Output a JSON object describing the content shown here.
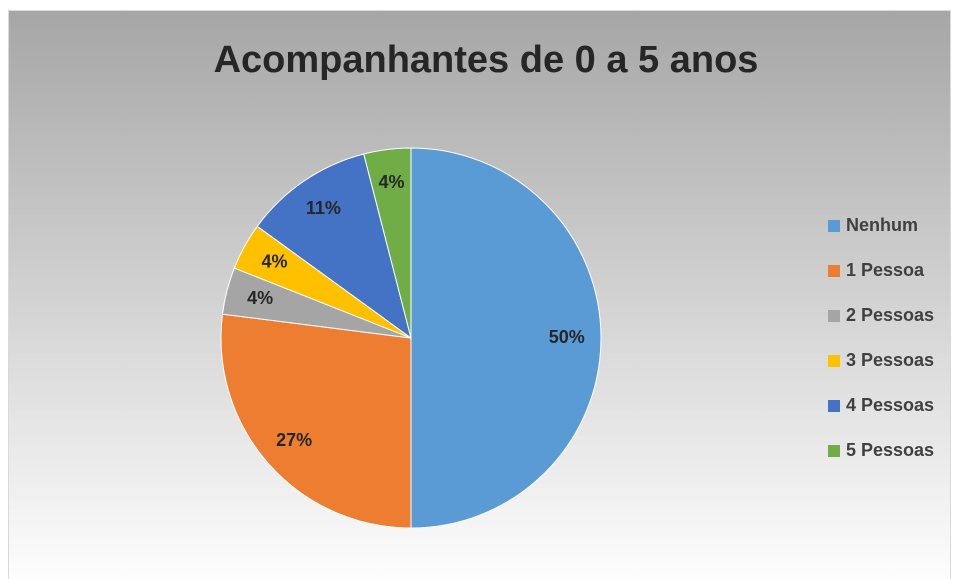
{
  "chart_data": {
    "type": "pie",
    "title": "Acompanhantes de 0 a 5 anos",
    "categories": [
      "Nenhum",
      "1 Pessoa",
      "2 Pessoas",
      "3 Pessoas",
      "4 Pessoas",
      "5 Pessoas"
    ],
    "values": [
      50,
      27,
      4,
      4,
      11,
      4
    ],
    "value_labels": [
      "50%",
      "27%",
      "4%",
      "4%",
      "11%",
      "4%"
    ],
    "colors": [
      "#5b9bd5",
      "#ed7d31",
      "#a5a5a5",
      "#ffc000",
      "#4472c4",
      "#70ad47"
    ],
    "legend": "right"
  }
}
